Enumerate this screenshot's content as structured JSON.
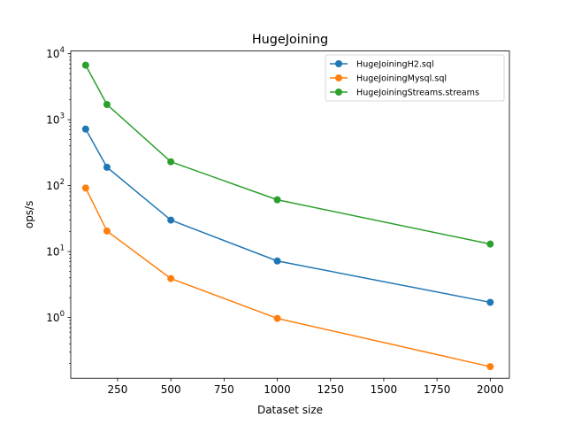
{
  "chart_data": {
    "type": "line",
    "title": "HugeJoining",
    "xlabel": "Dataset size",
    "ylabel": "ops/s",
    "xlim": [
      30,
      2090
    ],
    "ylim": [
      0.12,
      11000
    ],
    "yscale": "log",
    "xticks": [
      250,
      500,
      750,
      1000,
      1250,
      1500,
      1750,
      2000
    ],
    "yticks": [
      {
        "value": 1,
        "base": "10",
        "exp": "0"
      },
      {
        "value": 10,
        "base": "10",
        "exp": "1"
      },
      {
        "value": 100,
        "base": "10",
        "exp": "2"
      },
      {
        "value": 1000,
        "base": "10",
        "exp": "3"
      },
      {
        "value": 10000,
        "base": "10",
        "exp": "4"
      }
    ],
    "legend_position": "top-right",
    "grid": false,
    "x": [
      100,
      200,
      500,
      1000,
      2000
    ],
    "series": [
      {
        "name": "HugeJoiningH2.sql",
        "color": "#1f77b4",
        "values": [
          720,
          190,
          30,
          7.2,
          1.7
        ]
      },
      {
        "name": "HugeJoiningMysql.sql",
        "color": "#ff7f0e",
        "values": [
          92,
          20.5,
          3.9,
          0.97,
          0.18
        ]
      },
      {
        "name": "HugeJoiningStreams.streams",
        "color": "#2ca02c",
        "values": [
          6700,
          1700,
          230,
          61,
          13
        ]
      }
    ]
  }
}
